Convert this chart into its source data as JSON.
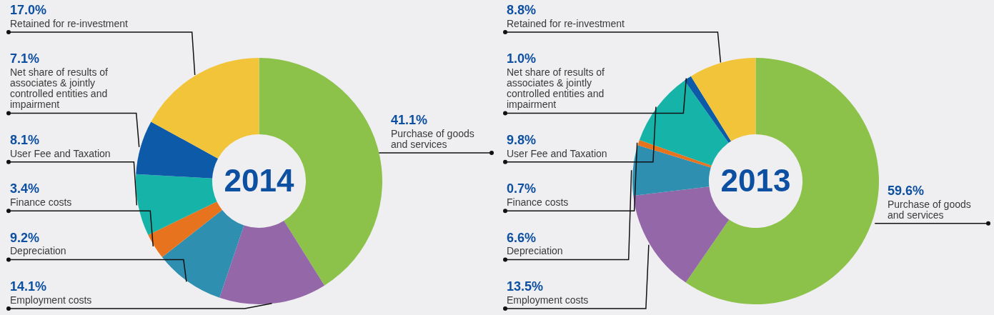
{
  "chart_data": [
    {
      "type": "donut",
      "title": "2014",
      "categories": [
        "Purchase of goods and services",
        "Employment costs",
        "Depreciation",
        "Finance costs",
        "User Fee and Taxation",
        "Net share of results of associates & jointly controlled entities and impairment",
        "Retained for re-investment"
      ],
      "values": [
        41.1,
        14.1,
        9.2,
        3.4,
        8.1,
        7.1,
        17.0
      ],
      "colors": [
        "#8cc24a",
        "#9467a8",
        "#2f8fb0",
        "#e8731e",
        "#16b3a8",
        "#0d5aa8",
        "#f2c43a"
      ],
      "value_labels": [
        "41.1%",
        "14.1%",
        "9.2%",
        "3.4%",
        "8.1%",
        "7.1%",
        "17.0%"
      ]
    },
    {
      "type": "donut",
      "title": "2013",
      "categories": [
        "Purchase of goods and services",
        "Employment costs",
        "Depreciation",
        "Finance costs",
        "User Fee and Taxation",
        "Net share of results of associates & jointly controlled entities and impairment",
        "Retained for re-investment"
      ],
      "values": [
        59.6,
        13.5,
        6.6,
        0.7,
        9.8,
        1.0,
        8.8
      ],
      "colors": [
        "#8cc24a",
        "#9467a8",
        "#2f8fb0",
        "#e8731e",
        "#16b3a8",
        "#0d5aa8",
        "#f2c43a"
      ],
      "value_labels": [
        "59.6%",
        "13.5%",
        "6.6%",
        "0.7%",
        "9.8%",
        "1.0%",
        "8.8%"
      ]
    }
  ]
}
